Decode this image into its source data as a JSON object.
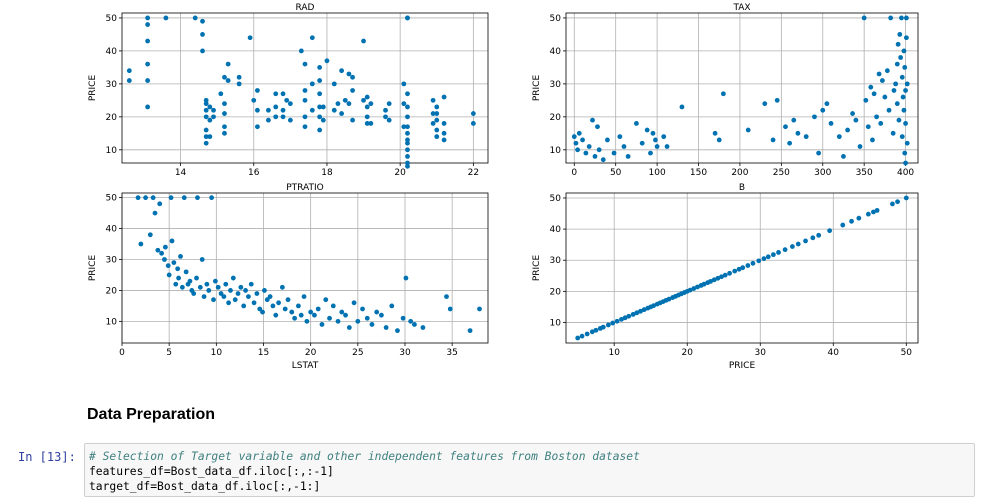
{
  "section": {
    "heading": "Data Preparation"
  },
  "cell": {
    "prompt": "In [13]:",
    "lines": [
      "# Selection of Target variable and other independent features from Boston dataset",
      "features_df=Bost_data_df.iloc[:,:-1]",
      "target_df=Bost_data_df.iloc[:,-1:]"
    ]
  },
  "colors": {
    "point": "#1f77b4",
    "point_fill": "#0072B2",
    "grid": "#b0b0b0",
    "prompt": "#303F9F",
    "comment": "#408080"
  },
  "chart_data": [
    {
      "type": "scatter",
      "title": "RAD",
      "xlabel": "",
      "ylabel": "PRICE",
      "xlim": [
        12.4,
        22.4
      ],
      "ylim": [
        6,
        51.5
      ],
      "xticks": [
        14,
        16,
        18,
        20,
        22
      ],
      "yticks": [
        10,
        20,
        30,
        40,
        50
      ],
      "grid": true,
      "x": [
        12.6,
        12.6,
        13.1,
        13.1,
        13.1,
        13.1,
        13.1,
        13.1,
        13.6,
        14.4,
        14.6,
        14.6,
        14.6,
        14.7,
        14.7,
        14.7,
        14.7,
        14.7,
        14.7,
        14.7,
        14.8,
        14.8,
        14.8,
        14.9,
        14.9,
        15.1,
        15.2,
        15.2,
        15.2,
        15.2,
        15.2,
        15.3,
        15.3,
        15.6,
        15.6,
        15.9,
        16.0,
        16.1,
        16.1,
        16.1,
        16.4,
        16.4,
        16.6,
        16.6,
        16.6,
        16.8,
        16.8,
        16.8,
        16.9,
        17.0,
        17.0,
        17.3,
        17.4,
        17.4,
        17.4,
        17.4,
        17.4,
        17.6,
        17.6,
        17.6,
        17.8,
        17.8,
        17.8,
        17.8,
        17.8,
        17.8,
        17.9,
        17.9,
        18.0,
        18.2,
        18.2,
        18.3,
        18.4,
        18.4,
        18.5,
        18.6,
        18.6,
        18.7,
        18.7,
        18.7,
        19.0,
        19.0,
        19.1,
        19.1,
        19.1,
        19.1,
        19.2,
        19.2,
        19.6,
        19.6,
        19.7,
        19.7,
        20.1,
        20.1,
        20.1,
        20.2,
        20.2,
        20.2,
        20.2,
        20.2,
        20.2,
        20.2,
        20.2,
        20.2,
        20.2,
        20.2,
        20.2,
        20.2,
        20.9,
        20.9,
        20.9,
        21.0,
        21.0,
        21.0,
        21.0,
        21.0,
        21.2,
        21.2,
        21.2,
        21.2,
        22.0,
        22.0
      ],
      "y": [
        34,
        31,
        50,
        48,
        43,
        36,
        31,
        23,
        50,
        50,
        49,
        45,
        40,
        24,
        20,
        16,
        14,
        12,
        25,
        22,
        23,
        19,
        14,
        22,
        20,
        27,
        32,
        24,
        21,
        17,
        15,
        36,
        31,
        32,
        30,
        44,
        25,
        28,
        22,
        17,
        22,
        19,
        27,
        23,
        20,
        27,
        22,
        20,
        25,
        24,
        19,
        40,
        36,
        28,
        25,
        20,
        17,
        44,
        30,
        22,
        35,
        31,
        27,
        23,
        20,
        16,
        23,
        19,
        37,
        30,
        22,
        24,
        34,
        21,
        25,
        33,
        24,
        32,
        28,
        19,
        43,
        25,
        26,
        23,
        20,
        18,
        24,
        18,
        22,
        20,
        24,
        19,
        30,
        24,
        17,
        50,
        50,
        23,
        20,
        17,
        15,
        12,
        10,
        8,
        6,
        5,
        13,
        27,
        25,
        21,
        18,
        23,
        21,
        19,
        16,
        14,
        26,
        18,
        15,
        13,
        21,
        18
      ]
    },
    {
      "type": "scatter",
      "title": "TAX",
      "xlabel": "",
      "ylabel": "PRICE",
      "xlim": [
        -10,
        415
      ],
      "ylim": [
        6,
        51.5
      ],
      "xticks": [
        0,
        50,
        100,
        150,
        200,
        250,
        300,
        350,
        400
      ],
      "yticks": [
        10,
        20,
        30,
        40,
        50
      ],
      "grid": true,
      "x": [
        0,
        2,
        4,
        6,
        10,
        14,
        18,
        22,
        25,
        28,
        30,
        35,
        40,
        48,
        55,
        60,
        65,
        75,
        82,
        88,
        92,
        95,
        98,
        100,
        108,
        112,
        130,
        170,
        175,
        180,
        210,
        230,
        240,
        245,
        255,
        260,
        265,
        270,
        280,
        290,
        295,
        300,
        305,
        310,
        320,
        325,
        330,
        336,
        340,
        345,
        350,
        352,
        355,
        358,
        360,
        362,
        365,
        368,
        370,
        372,
        375,
        378,
        380,
        382,
        385,
        386,
        388,
        390,
        390,
        391,
        392,
        393,
        394,
        395,
        396,
        396,
        397,
        398,
        398,
        399,
        399,
        400,
        400,
        400,
        401,
        401,
        402,
        402
      ],
      "y": [
        14,
        12,
        10,
        15,
        13,
        9,
        11,
        19,
        8,
        17,
        10,
        7,
        13,
        9,
        14,
        11,
        8,
        18,
        12,
        16,
        9,
        15,
        13,
        11,
        14,
        11,
        23,
        15,
        13,
        27,
        16,
        24,
        13,
        25,
        17,
        12,
        19,
        15,
        14,
        20,
        9,
        22,
        24,
        18,
        14,
        8,
        16,
        21,
        19,
        11,
        50,
        25,
        17,
        29,
        13,
        27,
        20,
        33,
        18,
        31,
        26,
        34,
        22,
        50,
        15,
        28,
        30,
        36,
        24,
        42,
        19,
        45,
        38,
        50,
        14,
        32,
        26,
        22,
        40,
        9,
        35,
        18,
        28,
        6,
        44,
        50,
        30,
        12
      ]
    },
    {
      "type": "scatter",
      "title": "PTRATIO",
      "xlabel": "LSTAT",
      "ylabel": "PRICE",
      "xlim": [
        0,
        38.8
      ],
      "ylim": [
        3,
        51.5
      ],
      "xticks": [
        0,
        5,
        10,
        15,
        20,
        25,
        30,
        35
      ],
      "yticks": [
        10,
        20,
        30,
        40,
        50
      ],
      "grid": true,
      "x": [
        1.7,
        2.0,
        2.5,
        3.0,
        3.3,
        3.5,
        3.8,
        4.0,
        4.2,
        4.5,
        4.6,
        4.9,
        5.0,
        5.2,
        5.3,
        5.5,
        5.7,
        5.9,
        6.0,
        6.2,
        6.4,
        6.6,
        6.8,
        7.0,
        7.2,
        7.4,
        7.6,
        7.9,
        8.0,
        8.3,
        8.5,
        8.7,
        9.0,
        9.2,
        9.5,
        9.7,
        9.9,
        10.2,
        10.5,
        10.8,
        11.0,
        11.3,
        11.5,
        11.8,
        12.0,
        12.3,
        12.6,
        12.9,
        13.1,
        13.4,
        13.7,
        14.0,
        14.3,
        14.6,
        14.9,
        15.1,
        15.4,
        15.7,
        16.0,
        16.3,
        16.6,
        17.0,
        17.3,
        17.6,
        18.0,
        18.3,
        18.7,
        19.0,
        19.3,
        19.6,
        20.0,
        20.4,
        20.8,
        21.2,
        21.6,
        22.0,
        22.4,
        22.9,
        23.3,
        23.7,
        24.1,
        24.6,
        25.0,
        25.5,
        26.0,
        26.5,
        27.0,
        27.5,
        28.0,
        28.6,
        29.2,
        29.8,
        30.1,
        30.6,
        31.0,
        31.9,
        34.4,
        34.8,
        36.9,
        37.9
      ],
      "y": [
        50,
        35,
        50,
        38,
        50,
        45,
        33,
        48,
        32,
        30,
        34,
        28,
        25,
        50,
        36,
        29,
        22,
        27,
        24,
        31,
        21,
        50,
        26,
        22,
        23,
        20,
        19,
        24,
        50,
        21,
        30,
        18,
        22,
        20,
        50,
        17,
        23,
        21,
        19,
        18,
        22,
        16,
        20,
        24,
        17,
        19,
        21,
        15,
        20,
        18,
        22,
        16,
        19,
        14,
        13,
        20,
        17,
        18,
        15,
        12,
        16,
        21,
        14,
        17,
        13,
        11,
        15,
        12,
        18,
        10,
        13,
        12,
        14,
        9,
        17,
        11,
        15,
        10,
        13,
        12,
        8,
        16,
        10,
        14,
        11,
        9,
        13,
        12,
        8,
        15,
        7,
        11,
        24,
        10,
        9,
        8,
        18,
        14,
        7,
        14
      ]
    },
    {
      "type": "scatter",
      "title": "B",
      "xlabel": "PRICE",
      "ylabel": "PRICE",
      "xlim": [
        3.4,
        51.6
      ],
      "ylim": [
        3.4,
        51.6
      ],
      "xticks": [
        10,
        20,
        30,
        40,
        50
      ],
      "yticks": [
        10,
        20,
        30,
        40,
        50
      ],
      "grid": true,
      "x": [
        5,
        5.6,
        6.3,
        7,
        7.5,
        8.1,
        8.5,
        9.2,
        9.8,
        10.4,
        11,
        11.5,
        12,
        12.6,
        13.1,
        13.6,
        14.1,
        14.6,
        15,
        15.4,
        15.9,
        16.3,
        16.7,
        17.1,
        17.5,
        18,
        18.4,
        18.8,
        19.2,
        19.6,
        20,
        20.4,
        20.9,
        21.4,
        21.9,
        22.3,
        22.8,
        23.2,
        23.7,
        24.2,
        24.7,
        25.2,
        25.8,
        26.5,
        27.1,
        27.6,
        28.3,
        29,
        29.8,
        30.5,
        31.1,
        31.8,
        32.5,
        33.4,
        34.4,
        35.2,
        36.2,
        37.2,
        38,
        39.5,
        41.3,
        42.5,
        43.5,
        44.8,
        45.5,
        46,
        48.1,
        48.8,
        50
      ],
      "y": [
        5,
        5.6,
        6.3,
        7,
        7.5,
        8.1,
        8.5,
        9.2,
        9.8,
        10.4,
        11,
        11.5,
        12,
        12.6,
        13.1,
        13.6,
        14.1,
        14.6,
        15,
        15.4,
        15.9,
        16.3,
        16.7,
        17.1,
        17.5,
        18,
        18.4,
        18.8,
        19.2,
        19.6,
        20,
        20.4,
        20.9,
        21.4,
        21.9,
        22.3,
        22.8,
        23.2,
        23.7,
        24.2,
        24.7,
        25.2,
        25.8,
        26.5,
        27.1,
        27.6,
        28.3,
        29,
        29.8,
        30.5,
        31.1,
        31.8,
        32.5,
        33.4,
        34.4,
        35.2,
        36.2,
        37.2,
        38,
        39.5,
        41.3,
        42.5,
        43.5,
        44.8,
        45.5,
        46,
        48.1,
        48.8,
        50
      ]
    }
  ]
}
